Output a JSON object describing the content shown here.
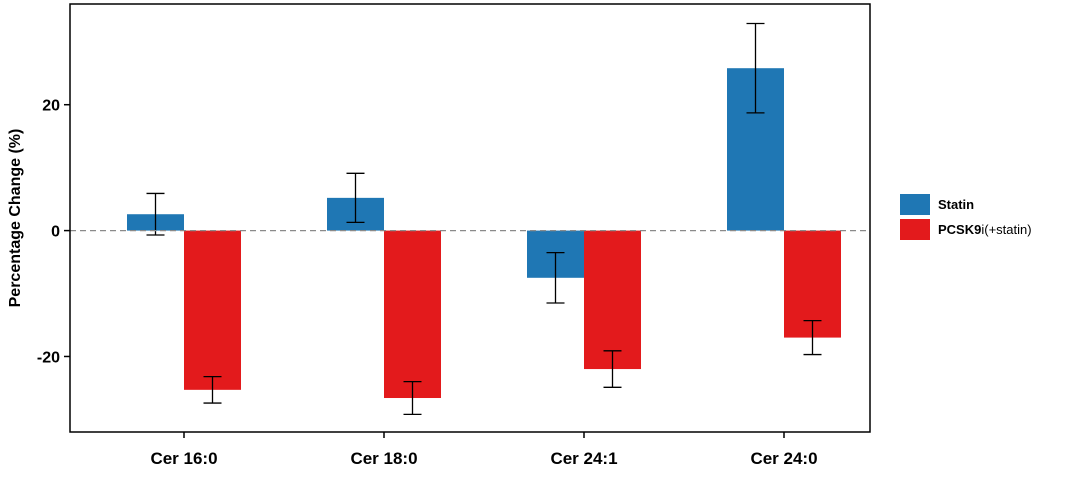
{
  "chart_data": {
    "type": "bar",
    "categories": [
      "Cer 16:0",
      "Cer 18:0",
      "Cer 24:1",
      "Cer 24:0"
    ],
    "ylabel": "Percentage Change (%)",
    "xlabel": "",
    "ylim": [
      -32,
      36
    ],
    "yticks": [
      -20,
      0,
      20
    ],
    "reference_line": 0,
    "grid": false,
    "legend_position": "right",
    "series": [
      {
        "name": "Statin",
        "legend_bold": "Statin",
        "legend_rest": "",
        "color": "#1f77b4",
        "values": [
          2.6,
          5.2,
          -7.5,
          25.8
        ],
        "error": [
          3.3,
          3.9,
          4.0,
          7.1
        ]
      },
      {
        "name": "PCSK9i(+statin)",
        "legend_bold": "PCSK9",
        "legend_rest": "i(+statin)",
        "color": "#e31a1c",
        "values": [
          -25.3,
          -26.6,
          -22.0,
          -17.0
        ],
        "error": [
          2.1,
          2.6,
          2.9,
          2.7
        ]
      }
    ]
  }
}
